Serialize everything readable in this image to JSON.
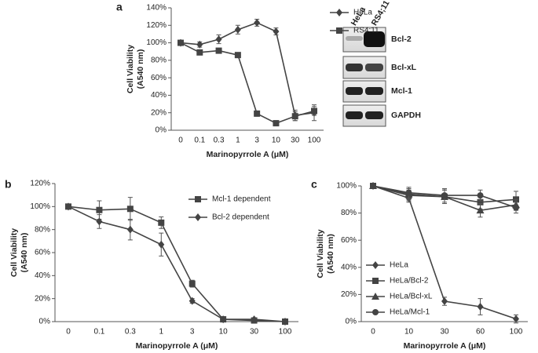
{
  "chart_data": [
    {
      "type": "line",
      "panel": "a",
      "categories": [
        "0",
        "0.1",
        "0.3",
        "1",
        "3",
        "10",
        "30",
        "100"
      ],
      "xlabel": "Marinopyrrole A (μM)",
      "ylabel": [
        "Cell Viability",
        "(A540 nm)"
      ],
      "ylim": [
        0,
        140
      ],
      "yticks": [
        {
          "value": 0,
          "label": "0%"
        },
        {
          "value": 20,
          "label": "20%"
        },
        {
          "value": 40,
          "label": "40%"
        },
        {
          "value": 60,
          "label": "60%"
        },
        {
          "value": 80,
          "label": "80%"
        },
        {
          "value": 100,
          "label": "100%"
        },
        {
          "value": 120,
          "label": "120%"
        },
        {
          "value": 140,
          "label": "140%"
        }
      ],
      "legend": "right",
      "series": [
        {
          "name": "HeLa",
          "color": "#444444",
          "marker": "diamond",
          "values": [
            100,
            98,
            104,
            115,
            123,
            113,
            17,
            20
          ],
          "errors": [
            2,
            3,
            5,
            5,
            4,
            4,
            6,
            9
          ]
        },
        {
          "name": "RS4;11",
          "color": "#444444",
          "marker": "square",
          "values": [
            100,
            89,
            91,
            86,
            19,
            8,
            16,
            22
          ],
          "errors": [
            2,
            2,
            2,
            2,
            3,
            2,
            5,
            5
          ]
        }
      ]
    },
    {
      "type": "line",
      "panel": "b",
      "categories": [
        "0",
        "0.1",
        "0.3",
        "1",
        "3",
        "10",
        "30",
        "100"
      ],
      "xlabel": "Marinopyrrole A (μM)",
      "ylabel": [
        "Cell Viability",
        "(A540 nm)"
      ],
      "ylim": [
        0,
        120
      ],
      "yticks": [
        {
          "value": 0,
          "label": "0%"
        },
        {
          "value": 20,
          "label": "20%"
        },
        {
          "value": 40,
          "label": "40%"
        },
        {
          "value": 60,
          "label": "60%"
        },
        {
          "value": 80,
          "label": "80%"
        },
        {
          "value": 100,
          "label": "100%"
        },
        {
          "value": 120,
          "label": "120%"
        }
      ],
      "legend": "upper right",
      "series": [
        {
          "name": "Mcl-1 dependent",
          "color": "#444444",
          "marker": "square",
          "values": [
            100,
            97,
            98,
            86,
            33,
            2,
            1,
            0
          ],
          "errors": [
            1,
            8,
            10,
            5,
            3,
            1,
            1,
            1
          ]
        },
        {
          "name": "Bcl-2 dependent",
          "color": "#444444",
          "marker": "diamond",
          "values": [
            100,
            87,
            80,
            67,
            18,
            2,
            2,
            0
          ],
          "errors": [
            1,
            6,
            9,
            10,
            2,
            1,
            1,
            1
          ]
        }
      ]
    },
    {
      "type": "line",
      "panel": "c",
      "categories": [
        "0",
        "10",
        "30",
        "60",
        "100"
      ],
      "xlabel": "Marinopyrrole A (μM)",
      "ylabel": [
        "Cell Viability",
        "(A540 nm)"
      ],
      "ylim": [
        0,
        100
      ],
      "yticks": [
        {
          "value": 0,
          "label": "0%"
        },
        {
          "value": 20,
          "label": "20%"
        },
        {
          "value": 40,
          "label": "40%"
        },
        {
          "value": 60,
          "label": "60%"
        },
        {
          "value": 80,
          "label": "80%"
        },
        {
          "value": 100,
          "label": "100%"
        }
      ],
      "legend": "lower left",
      "series": [
        {
          "name": "HeLa",
          "color": "#444444",
          "marker": "diamond",
          "values": [
            100,
            91,
            15,
            11,
            2
          ],
          "errors": [
            1,
            3,
            3,
            6,
            3
          ]
        },
        {
          "name": "HeLa/Bcl-2",
          "color": "#444444",
          "marker": "square",
          "values": [
            100,
            93,
            92,
            88,
            90
          ],
          "errors": [
            1,
            4,
            5,
            5,
            6
          ]
        },
        {
          "name": "HeLa/Bcl-xL",
          "color": "#444444",
          "marker": "triangle",
          "values": [
            100,
            94,
            92,
            82,
            86
          ],
          "errors": [
            1,
            4,
            5,
            5,
            4
          ]
        },
        {
          "name": "HeLa/Mcl-1",
          "color": "#444444",
          "marker": "circle",
          "values": [
            100,
            95,
            93,
            93,
            84
          ],
          "errors": [
            1,
            4,
            5,
            4,
            4
          ]
        }
      ]
    }
  ],
  "blot": {
    "lanes": [
      "HeLa",
      "RS4;11"
    ],
    "proteins": [
      "Bcl-2",
      "Bcl-xL",
      "Mcl-1",
      "GAPDH"
    ]
  }
}
